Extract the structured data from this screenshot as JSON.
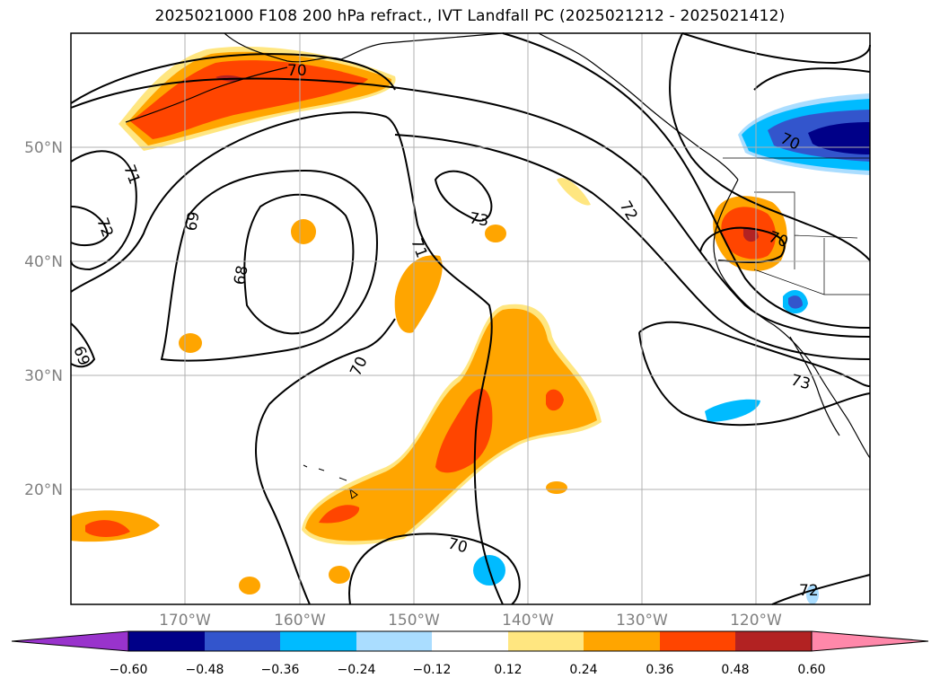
{
  "title": "2025021000 F108 200 hPa refract., IVT Landfall PC (2025021212 - 2025021412)",
  "map": {
    "lat_labels": [
      "50°N",
      "40°N",
      "30°N",
      "20°N"
    ],
    "lon_labels": [
      "170°W",
      "160°W",
      "150°W",
      "140°W",
      "130°W",
      "120°W"
    ],
    "contour_labels": [
      "70",
      "71",
      "72",
      "69",
      "68",
      "73",
      "71",
      "70",
      "72",
      "70",
      "69",
      "70",
      "73",
      "72",
      "70",
      "72"
    ]
  },
  "colorbar": {
    "ticks": [
      "−0.60",
      "−0.48",
      "−0.36",
      "−0.24",
      "−0.12",
      "0.12",
      "0.24",
      "0.36",
      "0.48",
      "0.60"
    ],
    "colors": [
      "#9933cc",
      "#000088",
      "#3355cc",
      "#00bbff",
      "#aaddff",
      "#ffffff",
      "#ffe680",
      "#ffa500",
      "#ff4500",
      "#b22222",
      "#ff88aa"
    ]
  },
  "colors": {
    "neg_extreme": "#9933cc",
    "neg_dark": "#000088",
    "neg_mid": "#3355cc",
    "neg_light": "#00bbff",
    "neg_pale": "#aaddff",
    "pos_pale": "#ffe680",
    "pos_orange": "#ffa500",
    "pos_red": "#ff4500",
    "pos_dark": "#b22222",
    "pos_extreme": "#ff88aa"
  }
}
